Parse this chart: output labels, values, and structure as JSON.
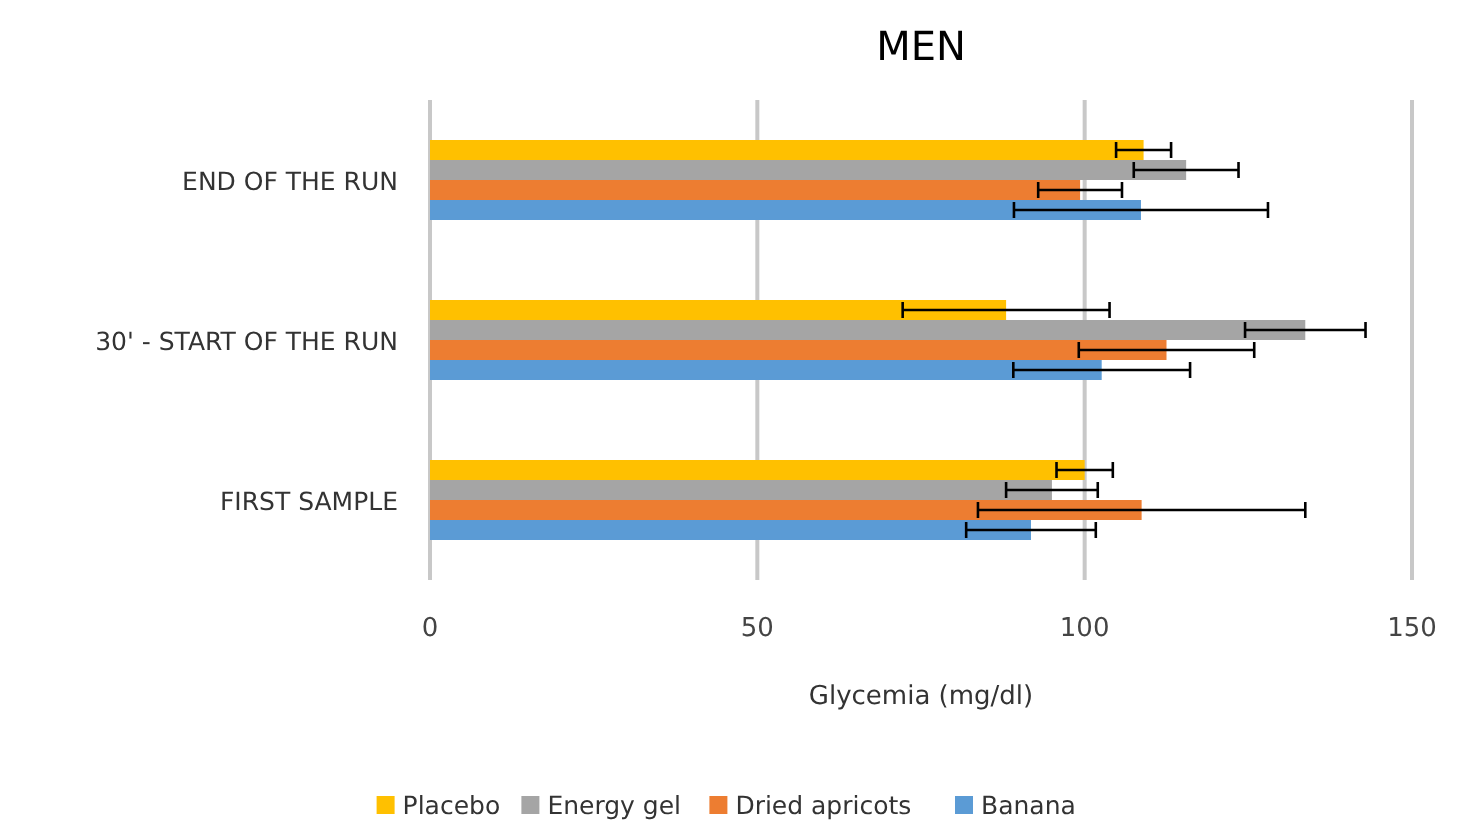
{
  "chart_data": {
    "type": "bar",
    "orientation": "horizontal",
    "title": "MEN",
    "xlabel": "Glycemia (mg/dl)",
    "categories": [
      "END OF THE RUN",
      "30' - START OF THE RUN",
      "FIRST SAMPLE"
    ],
    "series": [
      {
        "name": "Placebo",
        "color": "#ffc000",
        "values": [
          109,
          88,
          100
        ],
        "errors": [
          4.2,
          15.8,
          4.3
        ]
      },
      {
        "name": "Energy gel",
        "color": "#a5a5a5",
        "values": [
          115.5,
          133.7,
          95
        ],
        "errors": [
          8,
          9.2,
          7
        ]
      },
      {
        "name": "Dried apricots",
        "color": "#ed7d31",
        "values": [
          99.3,
          112.5,
          108.7
        ],
        "errors": [
          6.4,
          13.4,
          25
        ]
      },
      {
        "name": "Banana",
        "color": "#5b9bd5",
        "values": [
          108.6,
          102.6,
          91.8
        ],
        "errors": [
          19.4,
          13.5,
          9.9
        ]
      }
    ],
    "xlim": [
      0,
      150
    ],
    "xticks": [
      0,
      50,
      100,
      150
    ],
    "grid": "x",
    "legend": "bottom"
  }
}
